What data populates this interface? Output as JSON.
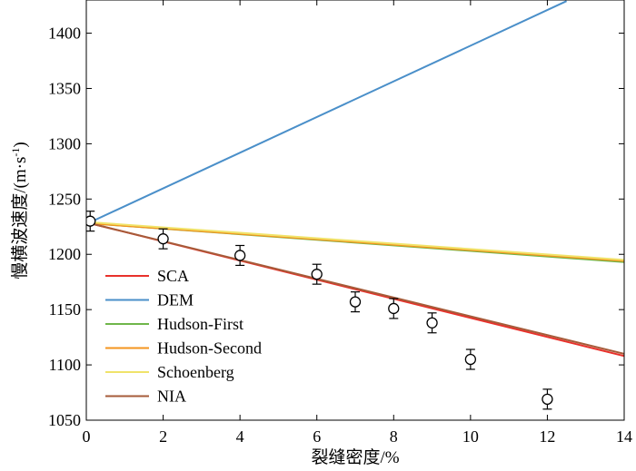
{
  "chart_data": {
    "type": "line",
    "title": "",
    "xlabel": "裂缝密度/%",
    "ylabel_main": "慢横波速度/(m·s",
    "ylabel_sup": "-1",
    "ylabel_close": ")",
    "xlim": [
      0,
      14
    ],
    "ylim": [
      1050,
      1430
    ],
    "xticks": [
      0,
      2,
      4,
      6,
      8,
      10,
      12,
      14
    ],
    "yticks": [
      1050,
      1100,
      1150,
      1200,
      1250,
      1300,
      1350,
      1400
    ],
    "grid": false,
    "legend_position": "lower-left",
    "series": [
      {
        "name": "SCA",
        "color": "#e8312b",
        "x": [
          0.1,
          14
        ],
        "y": [
          1228,
          1108
        ]
      },
      {
        "name": "DEM",
        "color": "#4a8fc9",
        "x": [
          0.1,
          12.5
        ],
        "y": [
          1229,
          1429
        ]
      },
      {
        "name": "Hudson-First",
        "color": "#6fb64a",
        "x": [
          0.1,
          14
        ],
        "y": [
          1228,
          1193
        ]
      },
      {
        "name": "Hudson-Second",
        "color": "#f4941e",
        "x": [
          0.1,
          14
        ],
        "y": [
          1228,
          1194
        ]
      },
      {
        "name": "Schoenberg",
        "color": "#f0e36a",
        "x": [
          0.1,
          14
        ],
        "y": [
          1229,
          1195
        ]
      },
      {
        "name": "NIA",
        "color": "#a65b39",
        "x": [
          0.1,
          14
        ],
        "y": [
          1228,
          1110
        ]
      }
    ],
    "measurements": {
      "marker": "open-circle",
      "points": [
        {
          "x": 0.1,
          "y": 1230,
          "err": 9
        },
        {
          "x": 2,
          "y": 1214,
          "err": 9
        },
        {
          "x": 4,
          "y": 1199,
          "err": 9
        },
        {
          "x": 6,
          "y": 1182,
          "err": 9
        },
        {
          "x": 7,
          "y": 1157,
          "err": 9
        },
        {
          "x": 8,
          "y": 1151,
          "err": 9
        },
        {
          "x": 9,
          "y": 1138,
          "err": 9
        },
        {
          "x": 10,
          "y": 1105,
          "err": 9
        },
        {
          "x": 12,
          "y": 1069,
          "err": 9
        }
      ]
    }
  }
}
